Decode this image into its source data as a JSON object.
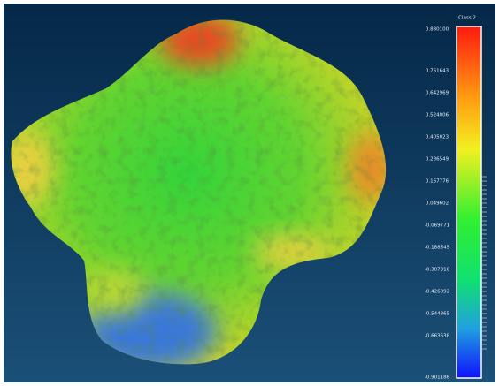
{
  "scale": {
    "title": "Class 2",
    "labels": [
      "0.880100",
      "0.761643",
      "0.642969",
      "0.524006",
      "0.405023",
      "0.286549",
      "0.167776",
      "0.049602",
      "-0.069771",
      "-0.188545",
      "-0.307318",
      "-0.426092",
      "-0.544865",
      "-0.663638",
      "-0.901186"
    ]
  }
}
